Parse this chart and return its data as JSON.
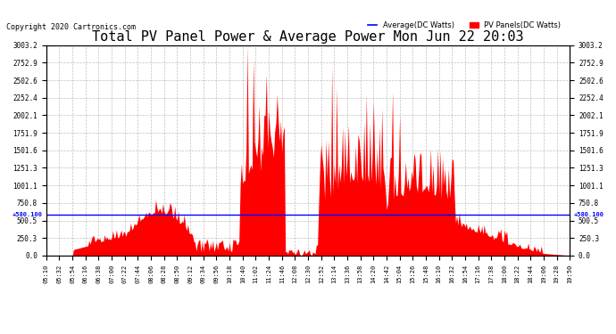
{
  "title": "Total PV Panel Power & Average Power Mon Jun 22 20:03",
  "copyright": "Copyright 2020 Cartronics.com",
  "legend_avg": "Average(DC Watts)",
  "legend_pv": "PV Panels(DC Watts)",
  "avg_value": 580.1,
  "ylim_min": 0.0,
  "ylim_max": 3003.2,
  "yticks": [
    0.0,
    250.3,
    500.5,
    750.8,
    1001.1,
    1251.3,
    1501.6,
    1751.9,
    2002.1,
    2252.4,
    2502.6,
    2752.9,
    3003.2
  ],
  "ytick_labels": [
    "0.0",
    "250.3",
    "500.5",
    "750.8",
    "1001.1",
    "1251.3",
    "1501.6",
    "1751.9",
    "2002.1",
    "2252.4",
    "2502.6",
    "2752.9",
    "3003.2"
  ],
  "background_color": "#ffffff",
  "fill_color": "#ff0000",
  "avg_line_color": "#0000ff",
  "grid_color": "#b0b0b0",
  "title_color": "#000000",
  "title_fontsize": 11,
  "copyright_color": "#000000",
  "copyright_fontsize": 6,
  "avg_label": "+580.100",
  "figwidth": 6.9,
  "figheight": 3.75,
  "dpi": 100
}
